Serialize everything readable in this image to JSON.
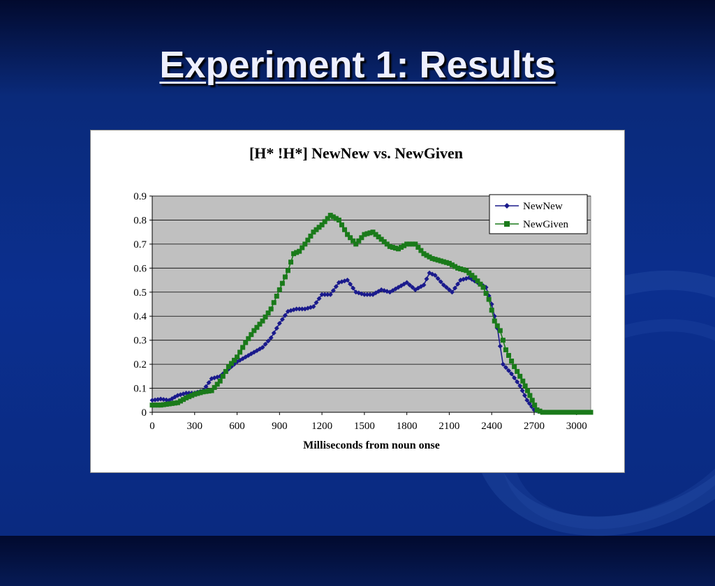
{
  "slide": {
    "title": "Experiment 1: Results"
  },
  "colors": {
    "newnew": "#1a1a8c",
    "newgiven": "#1a7a1a",
    "plot_bg": "#c0c0c0"
  },
  "chart_data": {
    "type": "line",
    "title": "[H* !H*] NewNew vs. NewGiven",
    "xlabel": "Milliseconds from noun onse",
    "ylabel": "",
    "xlim": [
      0,
      3100
    ],
    "ylim": [
      0,
      0.9
    ],
    "x_ticks": [
      "0",
      "300",
      "600",
      "900",
      "1200",
      "1500",
      "1800",
      "2100",
      "2400",
      "2700",
      "3000"
    ],
    "y_ticks": [
      "0",
      "0.1",
      "0.2",
      "0.3",
      "0.4",
      "0.5",
      "0.6",
      "0.7",
      "0.8",
      "0.9"
    ],
    "grid": true,
    "legend": "top-right",
    "series": [
      {
        "name": "NewNew",
        "marker": "diamond",
        "points": [
          [
            0,
            0.05
          ],
          [
            60,
            0.055
          ],
          [
            120,
            0.05
          ],
          [
            180,
            0.07
          ],
          [
            240,
            0.08
          ],
          [
            300,
            0.08
          ],
          [
            360,
            0.09
          ],
          [
            420,
            0.14
          ],
          [
            480,
            0.15
          ],
          [
            540,
            0.18
          ],
          [
            600,
            0.21
          ],
          [
            660,
            0.23
          ],
          [
            720,
            0.25
          ],
          [
            780,
            0.27
          ],
          [
            840,
            0.31
          ],
          [
            900,
            0.37
          ],
          [
            960,
            0.42
          ],
          [
            1020,
            0.43
          ],
          [
            1080,
            0.43
          ],
          [
            1140,
            0.44
          ],
          [
            1200,
            0.49
          ],
          [
            1260,
            0.49
          ],
          [
            1320,
            0.54
          ],
          [
            1380,
            0.55
          ],
          [
            1440,
            0.5
          ],
          [
            1500,
            0.49
          ],
          [
            1560,
            0.49
          ],
          [
            1620,
            0.51
          ],
          [
            1680,
            0.5
          ],
          [
            1740,
            0.52
          ],
          [
            1800,
            0.54
          ],
          [
            1860,
            0.51
          ],
          [
            1920,
            0.53
          ],
          [
            1960,
            0.58
          ],
          [
            2000,
            0.57
          ],
          [
            2060,
            0.53
          ],
          [
            2120,
            0.5
          ],
          [
            2180,
            0.55
          ],
          [
            2240,
            0.56
          ],
          [
            2300,
            0.54
          ],
          [
            2360,
            0.52
          ],
          [
            2400,
            0.45
          ],
          [
            2440,
            0.35
          ],
          [
            2480,
            0.2
          ],
          [
            2540,
            0.16
          ],
          [
            2600,
            0.11
          ],
          [
            2650,
            0.05
          ],
          [
            2700,
            0.01
          ],
          [
            2750,
            0.0
          ],
          [
            3100,
            0.0
          ]
        ]
      },
      {
        "name": "NewGiven",
        "marker": "square",
        "points": [
          [
            0,
            0.03
          ],
          [
            60,
            0.03
          ],
          [
            120,
            0.035
          ],
          [
            180,
            0.04
          ],
          [
            240,
            0.06
          ],
          [
            300,
            0.075
          ],
          [
            360,
            0.085
          ],
          [
            420,
            0.09
          ],
          [
            480,
            0.13
          ],
          [
            540,
            0.19
          ],
          [
            600,
            0.23
          ],
          [
            660,
            0.29
          ],
          [
            720,
            0.34
          ],
          [
            780,
            0.38
          ],
          [
            840,
            0.43
          ],
          [
            900,
            0.51
          ],
          [
            960,
            0.59
          ],
          [
            1000,
            0.66
          ],
          [
            1040,
            0.67
          ],
          [
            1080,
            0.7
          ],
          [
            1140,
            0.75
          ],
          [
            1200,
            0.78
          ],
          [
            1260,
            0.82
          ],
          [
            1320,
            0.8
          ],
          [
            1380,
            0.74
          ],
          [
            1440,
            0.7
          ],
          [
            1500,
            0.74
          ],
          [
            1560,
            0.75
          ],
          [
            1620,
            0.72
          ],
          [
            1680,
            0.69
          ],
          [
            1740,
            0.68
          ],
          [
            1800,
            0.7
          ],
          [
            1860,
            0.7
          ],
          [
            1920,
            0.66
          ],
          [
            1980,
            0.64
          ],
          [
            2040,
            0.63
          ],
          [
            2100,
            0.62
          ],
          [
            2160,
            0.6
          ],
          [
            2220,
            0.59
          ],
          [
            2280,
            0.56
          ],
          [
            2340,
            0.52
          ],
          [
            2380,
            0.47
          ],
          [
            2420,
            0.38
          ],
          [
            2460,
            0.34
          ],
          [
            2500,
            0.26
          ],
          [
            2560,
            0.19
          ],
          [
            2620,
            0.13
          ],
          [
            2670,
            0.07
          ],
          [
            2720,
            0.01
          ],
          [
            2760,
            0.0
          ],
          [
            3100,
            0.0
          ]
        ]
      }
    ]
  }
}
